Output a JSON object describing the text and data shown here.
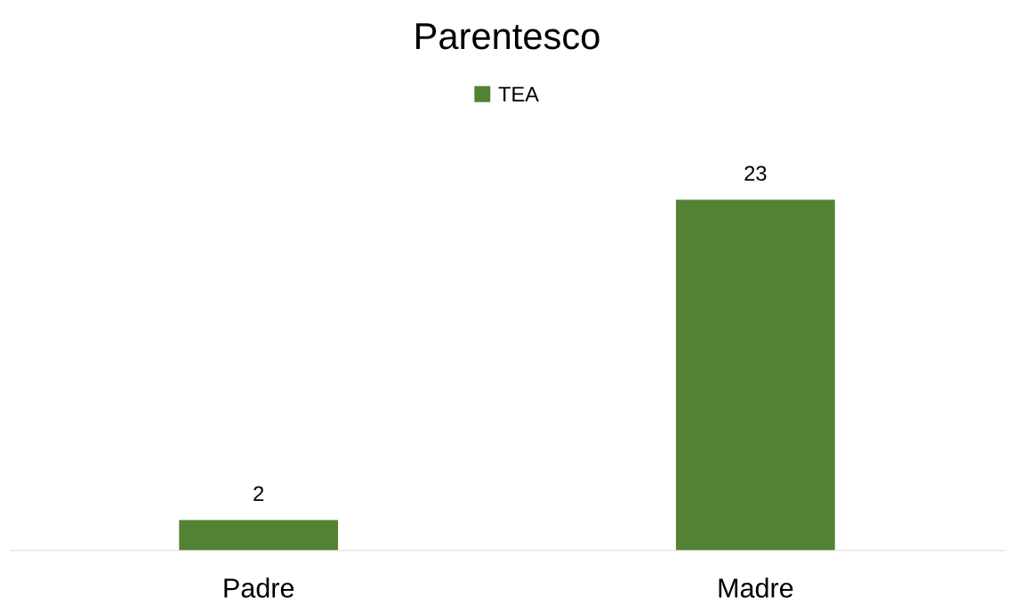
{
  "chart_data": {
    "type": "bar",
    "title": "Parentesco",
    "categories": [
      "Padre",
      "Madre"
    ],
    "series": [
      {
        "name": "TEA",
        "color": "#548235",
        "values": [
          2,
          23
        ]
      }
    ],
    "data_labels": true,
    "legend": "top"
  }
}
